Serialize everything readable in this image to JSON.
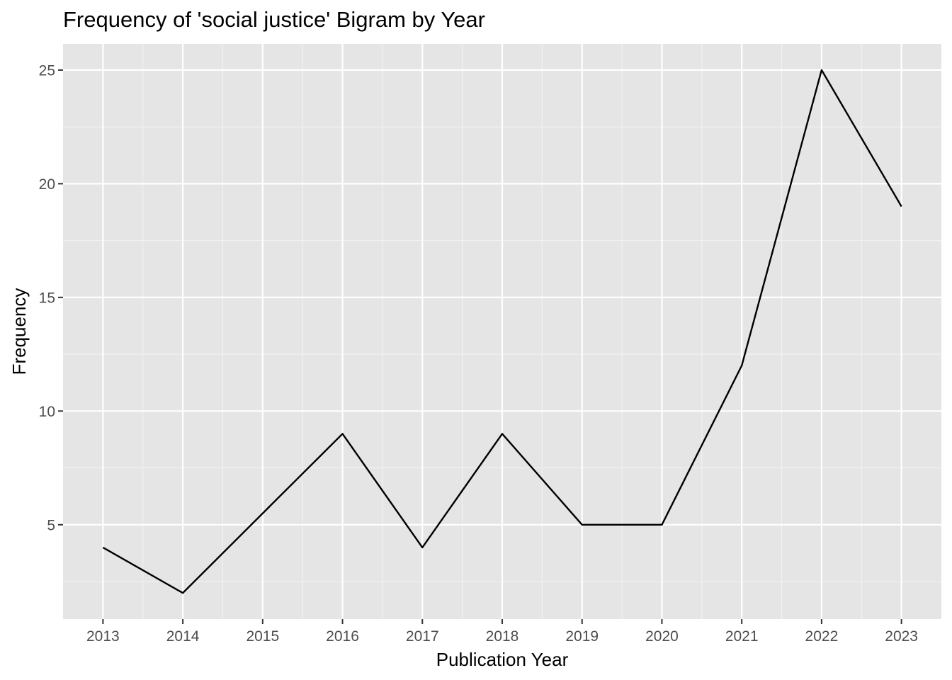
{
  "chart_data": {
    "type": "line",
    "title": "Frequency of 'social justice' Bigram by Year",
    "xlabel": "Publication Year",
    "ylabel": "Frequency",
    "x": [
      2013,
      2014,
      2015,
      2016,
      2017,
      2018,
      2019,
      2020,
      2021,
      2022,
      2023
    ],
    "series": [
      {
        "values": [
          4,
          2,
          5.5,
          9,
          4,
          9,
          5,
          5,
          12,
          25,
          19
        ]
      }
    ],
    "xlim": [
      2012.5,
      2023.5
    ],
    "ylim": [
      0.85,
      26.15
    ],
    "y_ticks": [
      5,
      10,
      15,
      20,
      25
    ],
    "x_ticks": [
      "2013",
      "2014",
      "2015",
      "2016",
      "2017",
      "2018",
      "2019",
      "2020",
      "2021",
      "2022",
      "2023"
    ],
    "grid": true,
    "legend": "none",
    "colors": {
      "panel": "#e5e5e5",
      "grid_major": "#ffffff",
      "grid_minor": "#f2f2f2",
      "line": "#000000",
      "tick_text": "#4d4d4d",
      "tick_mark": "#333333"
    }
  }
}
